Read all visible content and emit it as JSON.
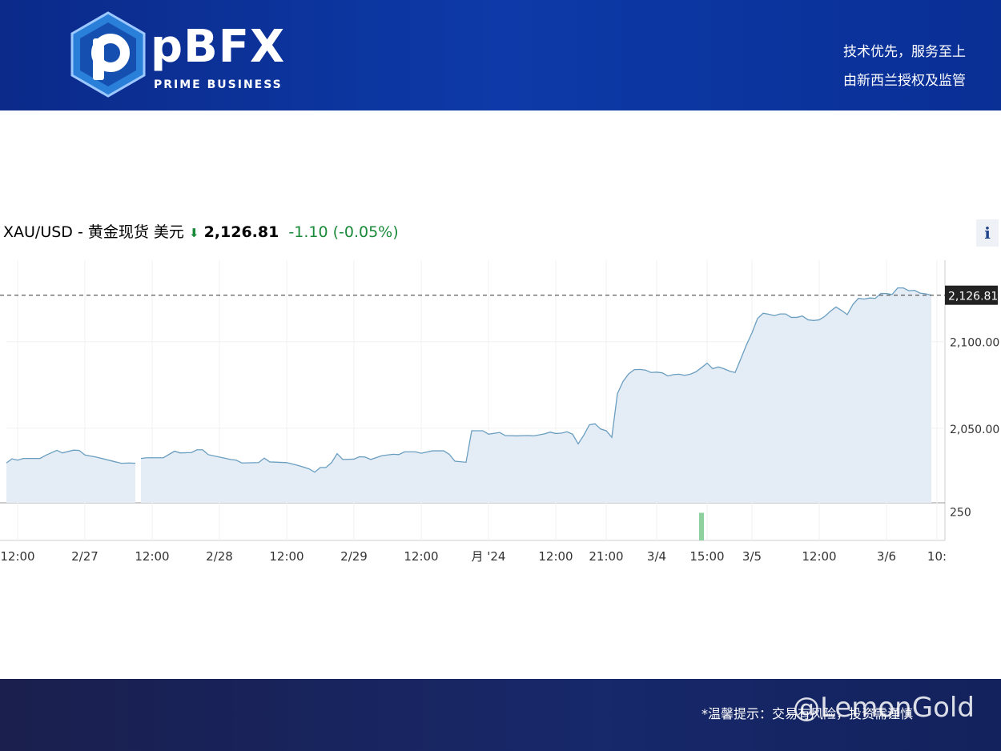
{
  "header": {
    "brand": "pBFX",
    "brand_sub": "PRIME BUSINESS",
    "slogan_1": "技术优先，服务至上",
    "slogan_2": "由新西兰授权及监管"
  },
  "footer": {
    "notice": "*温馨提示：交易有风险，投资需谨慎",
    "watermark": "@LemonGold"
  },
  "info_button": "i",
  "chart_data": {
    "type": "line",
    "title": "XAU/USD - 黄金现货 美元",
    "price": {
      "value": 2126.81,
      "label": "2,126.81"
    },
    "change": {
      "value": -1.1,
      "label": "-1.10"
    },
    "change_percent": "(-0.05%)",
    "x": [
      0,
      1,
      2,
      3,
      6,
      7,
      9,
      10,
      12,
      13,
      14,
      16,
      19,
      20.5,
      22,
      23,
      23.5,
      24,
      25,
      28,
      30,
      31,
      33,
      34,
      35,
      36,
      38,
      40,
      41,
      42,
      45,
      46,
      47,
      50,
      52,
      54,
      55,
      56,
      57,
      58,
      59,
      60,
      62,
      63,
      64,
      65,
      67,
      69,
      70,
      71,
      73,
      74,
      76,
      78,
      79,
      80,
      82,
      83,
      85,
      86,
      88,
      89,
      91,
      93,
      94,
      96,
      97,
      98,
      99,
      100,
      101,
      102,
      103,
      104,
      105,
      106,
      107,
      108,
      109,
      110,
      111,
      112,
      113,
      114,
      115,
      116,
      117,
      118,
      119,
      120,
      121,
      122,
      123,
      124,
      125,
      126,
      127,
      128,
      129,
      130,
      131,
      132,
      133,
      134,
      135,
      136,
      137,
      138,
      139,
      140,
      141,
      142,
      143,
      144,
      145,
      146,
      147,
      148,
      149,
      150,
      151,
      152,
      153,
      154,
      155,
      156,
      157,
      158,
      159,
      160,
      161,
      162,
      163,
      164,
      165
    ],
    "series": [
      {
        "name": "XAU/USD",
        "color": "#6a9ec0",
        "values": [
          2030.0,
          2032.4,
          2031.6,
          2032.6,
          2032.6,
          2034.4,
          2037.3,
          2035.8,
          2037.4,
          2037.2,
          2034.6,
          2033.4,
          2031.0,
          2029.8,
          2030.0,
          2029.8,
          null,
          2032.6,
          2033.0,
          2033.0,
          2036.8,
          2035.8,
          2036.0,
          2037.6,
          2037.6,
          2034.8,
          2033.4,
          2032.0,
          2031.6,
          2030.0,
          2030.2,
          2032.8,
          2030.6,
          2030.2,
          2028.6,
          2026.6,
          2024.7,
          2027.4,
          2027.4,
          2030.2,
          2035.4,
          2032.0,
          2032.2,
          2033.6,
          2033.4,
          2032.0,
          2034.2,
          2035.0,
          2034.8,
          2036.4,
          2036.4,
          2035.6,
          2037.0,
          2037.0,
          2035.0,
          2031.0,
          2030.4,
          2048.6,
          2048.6,
          2046.6,
          2047.6,
          2045.8,
          2045.6,
          2045.8,
          2045.6,
          2046.8,
          2047.8,
          2047.0,
          2047.2,
          2048.0,
          2046.6,
          2041.0,
          2046.0,
          2052.0,
          2052.6,
          2049.6,
          2048.6,
          2044.8,
          2070.0,
          2077.0,
          2081.4,
          2083.8,
          2084.0,
          2083.6,
          2082.2,
          2082.4,
          2082.0,
          2080.2,
          2081.0,
          2081.2,
          2080.6,
          2081.2,
          2082.6,
          2085.0,
          2087.6,
          2084.4,
          2085.4,
          2084.4,
          2083.0,
          2082.2,
          2090.0,
          2098.0,
          2105.0,
          2113.4,
          2116.4,
          2115.8,
          2115.0,
          2116.0,
          2116.0,
          2114.0,
          2114.0,
          2114.8,
          2112.6,
          2112.2,
          2112.6,
          2114.6,
          2117.6,
          2120.0,
          2118.0,
          2115.6,
          2121.4,
          2125.0,
          2124.6,
          2125.2,
          2125.0,
          2127.8,
          2127.8,
          2127.2,
          2131.0,
          2131.0,
          2129.4,
          2129.6,
          2128.0,
          2127.6,
          2126.8
        ]
      }
    ],
    "xlim": [
      0,
      168
    ],
    "xticks": [
      {
        "value": 2,
        "label": "12:00"
      },
      {
        "value": 14,
        "label": "2/27"
      },
      {
        "value": 26,
        "label": "12:00"
      },
      {
        "value": 38,
        "label": "2/28"
      },
      {
        "value": 50,
        "label": "12:00"
      },
      {
        "value": 62,
        "label": "2/29"
      },
      {
        "value": 74,
        "label": "12:00"
      },
      {
        "value": 86,
        "label": "月 '24"
      },
      {
        "value": 98,
        "label": "12:00"
      },
      {
        "value": 107,
        "label": "21:00"
      },
      {
        "value": 116,
        "label": "3/4"
      },
      {
        "value": 125,
        "label": "15:00"
      },
      {
        "value": 133,
        "label": "3/5"
      },
      {
        "value": 145,
        "label": "12:00"
      },
      {
        "value": 157,
        "label": "3/6"
      },
      {
        "value": 166,
        "label": "10:"
      }
    ],
    "ylim": [
      2007,
      2147
    ],
    "yticks": [
      {
        "value": 2050,
        "label": "2,050.00"
      },
      {
        "value": 2100,
        "label": "2,100.00"
      }
    ],
    "grid": true,
    "volume": {
      "x": [
        124
      ],
      "values": [
        235
      ],
      "ylim": [
        0,
        320
      ],
      "yticks": [
        250
      ],
      "color": "#8fd19e"
    }
  }
}
